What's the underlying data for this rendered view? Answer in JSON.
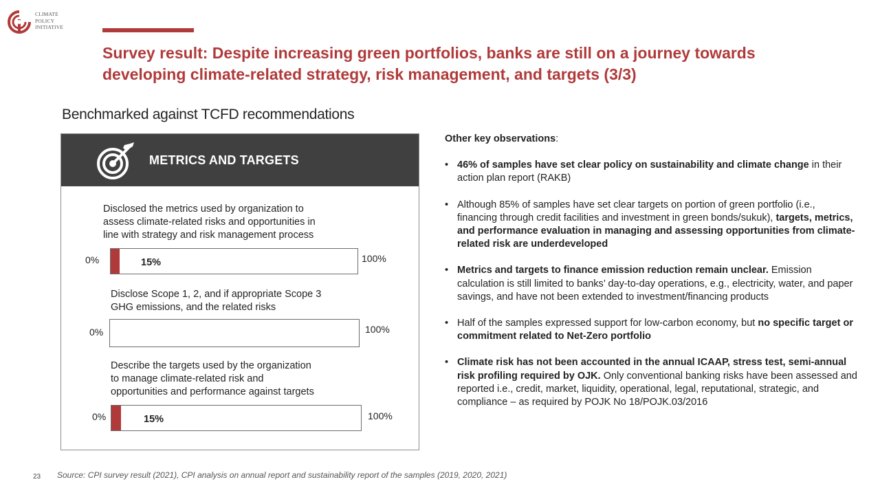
{
  "logo": {
    "lines": [
      "CLIMATE",
      "POLICY",
      "INITIATIVE"
    ]
  },
  "colors": {
    "accent": "#b03a3a",
    "header_bg": "#404040",
    "bar_border": "#6b6b6b"
  },
  "title": {
    "line1": "Survey result: Despite increasing green portfolios, banks are still on a journey towards",
    "line2": "developing climate-related strategy, risk management, and targets (3/3)"
  },
  "subtitle": "Benchmarked against TCFD recommendations",
  "panel": {
    "icon": "target-icon",
    "header": "METRICS AND TARGETS",
    "metrics": [
      {
        "label_lines": [
          "Disclosed the metrics used by organization to",
          "assess climate-related risks and opportunities in",
          "line with strategy and risk management process"
        ],
        "value": 15,
        "value_label": "15%",
        "min_label": "0%",
        "max_label": "100%"
      },
      {
        "label_lines": [
          "Disclose Scope 1, 2, and if appropriate Scope 3",
          "GHG emissions, and the related risks"
        ],
        "value": 0,
        "value_label": "",
        "min_label": "0%",
        "max_label": "100%"
      },
      {
        "label_lines": [
          "Describe the targets used by the organization",
          "to manage climate-related risk and",
          "opportunities and performance against targets"
        ],
        "value": 15,
        "value_label": "15%",
        "min_label": "0%",
        "max_label": "100%"
      }
    ]
  },
  "observations": {
    "heading": "Other key observations",
    "heading_suffix": ":",
    "bullets": [
      [
        {
          "t": "46% of samples have set clear policy on sustainability and climate change",
          "b": true
        },
        {
          "t": " in their action plan report (RAKB)",
          "b": false
        }
      ],
      [
        {
          "t": "Although 85% of samples have set clear targets on portion of green portfolio (i.e., financing through credit facilities and investment in green bonds/sukuk), ",
          "b": false
        },
        {
          "t": "targets, metrics, and performance evaluation in managing and assessing opportunities from climate-related risk are underdeveloped",
          "b": true
        }
      ],
      [
        {
          "t": "Metrics and targets to finance emission reduction remain unclear.",
          "b": true
        },
        {
          "t": " Emission calculation is still limited to banks’ day-to-day operations, e.g., electricity, water, and paper savings, and have not been extended to investment/financing products",
          "b": false
        }
      ],
      [
        {
          "t": "Half of the samples expressed support for low-carbon economy, but ",
          "b": false
        },
        {
          "t": "no specific target or commitment related to Net-Zero portfolio",
          "b": true
        }
      ],
      [
        {
          "t": "Climate risk has not been accounted in the annual ICAAP, stress test, semi-annual risk profiling required by OJK.",
          "b": true
        },
        {
          "t": " Only conventional banking risks have been assessed and reported i.e., credit, market, liquidity, operational, legal, reputational, strategic, and compliance – as required by POJK No 18/POJK.03/2016",
          "b": false
        }
      ]
    ]
  },
  "footer": {
    "page_number": "23",
    "source": "Source: CPI survey result (2021), CPI analysis on annual report and sustainability report of the samples (2019, 2020, 2021)"
  }
}
